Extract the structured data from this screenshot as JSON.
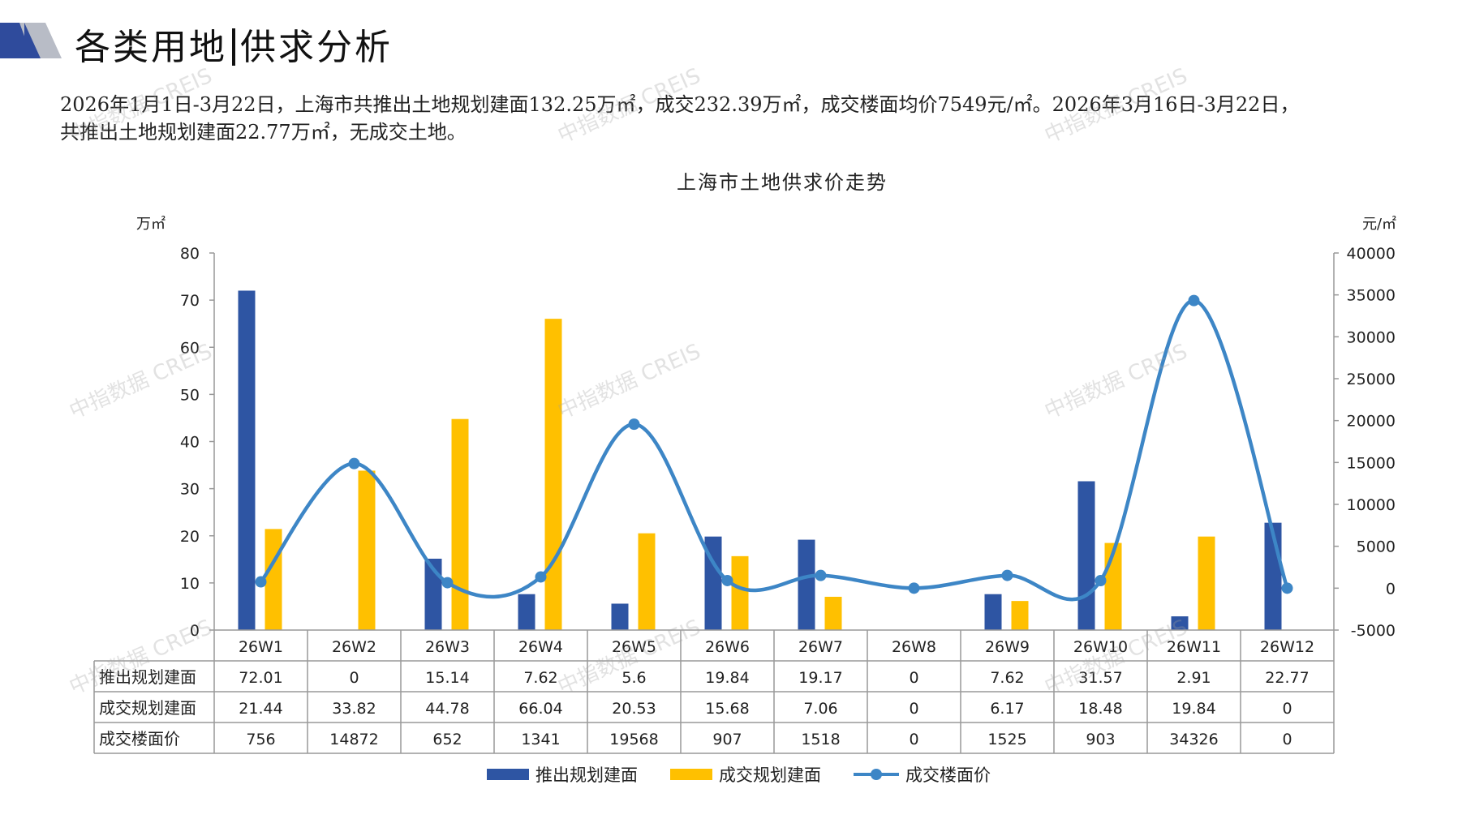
{
  "header": {
    "title_left": "各类用地",
    "title_right": "供求分析"
  },
  "summary": {
    "line1": "2026年1月1日-3月22日，上海市共推出土地规划建面132.25万㎡，成交232.39万㎡，成交楼面均价7549元/㎡。2026年3月16日-3月22日，",
    "line2": "共推出土地规划建面22.77万㎡，无成交土地。"
  },
  "watermark": "中指数据 CREIS",
  "colors": {
    "supply": "#2e55a3",
    "deal": "#ffc000",
    "price": "#3d86c6",
    "logo_dark": "#2f4b9c",
    "logo_gray": "#b8bcc6"
  },
  "chart_data": {
    "type": "bar",
    "title": "上海市土地供求价走势",
    "y_left_unit": "万㎡",
    "y_right_unit": "元/㎡",
    "ylim_left": [
      0,
      80
    ],
    "y_left_ticks": [
      0,
      10,
      20,
      30,
      40,
      50,
      60,
      70,
      80
    ],
    "ylim_right": [
      -5000,
      40000
    ],
    "y_right_ticks": [
      -5000,
      0,
      5000,
      10000,
      15000,
      20000,
      25000,
      30000,
      35000,
      40000
    ],
    "categories": [
      "26W1",
      "26W2",
      "26W3",
      "26W4",
      "26W5",
      "26W6",
      "26W7",
      "26W8",
      "26W9",
      "26W10",
      "26W11",
      "26W12"
    ],
    "series": [
      {
        "name": "推出规划建面",
        "type": "bar",
        "axis": "left",
        "values": [
          72.01,
          0,
          15.14,
          7.62,
          5.6,
          19.84,
          19.17,
          0,
          7.62,
          31.57,
          2.91,
          22.77
        ],
        "labels": [
          "72.01",
          "0",
          "15.14",
          "7.62",
          "5.6",
          "19.84",
          "19.17",
          "0",
          "7.62",
          "31.57",
          "2.91",
          "22.77"
        ]
      },
      {
        "name": "成交规划建面",
        "type": "bar",
        "axis": "left",
        "values": [
          21.44,
          33.82,
          44.78,
          66.04,
          20.53,
          15.68,
          7.06,
          0,
          6.17,
          18.48,
          19.84,
          0
        ],
        "labels": [
          "21.44",
          "33.82",
          "44.78",
          "66.04",
          "20.53",
          "15.68",
          "7.06",
          "0",
          "6.17",
          "18.48",
          "19.84",
          "0"
        ]
      },
      {
        "name": "成交楼面价",
        "type": "line",
        "axis": "right",
        "values": [
          756,
          14872,
          652,
          1341,
          19568,
          907,
          1518,
          0,
          1525,
          903,
          34326,
          0
        ],
        "labels": [
          "756",
          "14872",
          "652",
          "1341",
          "19568",
          "907",
          "1518",
          "0",
          "1525",
          "903",
          "34326",
          "0"
        ]
      }
    ],
    "legend_position": "bottom",
    "grid": false
  }
}
